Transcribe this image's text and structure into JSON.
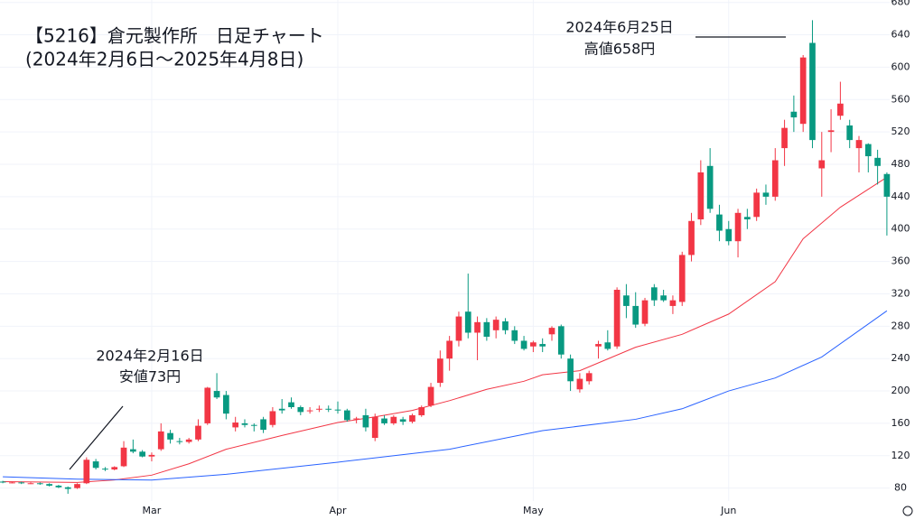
{
  "chart_data": {
    "type": "candlestick",
    "title": "【5216】倉元製作所　日足チャート",
    "subtitle": "(2024年2月6日～2025年4月8日)",
    "annotations": [
      {
        "lines": [
          "2024年6月25日",
          "高値658円"
        ]
      },
      {
        "lines": [
          "2024年2月16日",
          "安値73円"
        ]
      }
    ],
    "up_color": "#f23645",
    "down_color": "#089981",
    "ylim": [
      64,
      683
    ],
    "yticks": [
      80,
      120,
      160,
      200,
      240,
      280,
      320,
      360,
      400,
      440,
      480,
      520,
      560,
      600,
      640,
      680
    ],
    "xlim": [
      -0.3,
      95.3
    ],
    "xticks": [
      {
        "value": 16,
        "label": "Mar"
      },
      {
        "value": 36,
        "label": "Apr"
      },
      {
        "value": 57,
        "label": "May"
      },
      {
        "value": 78,
        "label": "Jun"
      }
    ],
    "grid": true,
    "candles": [
      {
        "o": 88,
        "h": 89,
        "l": 86,
        "c": 87
      },
      {
        "o": 87,
        "h": 88,
        "l": 86,
        "c": 87
      },
      {
        "o": 87,
        "h": 88,
        "l": 85,
        "c": 86
      },
      {
        "o": 86,
        "h": 87,
        "l": 85,
        "c": 86
      },
      {
        "o": 86,
        "h": 87,
        "l": 84,
        "c": 85
      },
      {
        "o": 85,
        "h": 86,
        "l": 82,
        "c": 83
      },
      {
        "o": 83,
        "h": 84,
        "l": 80,
        "c": 81
      },
      {
        "o": 81,
        "h": 82,
        "l": 73,
        "c": 79
      },
      {
        "o": 80,
        "h": 86,
        "l": 79,
        "c": 85
      },
      {
        "o": 86,
        "h": 118,
        "l": 85,
        "c": 115
      },
      {
        "o": 113,
        "h": 116,
        "l": 103,
        "c": 105
      },
      {
        "o": 104,
        "h": 106,
        "l": 101,
        "c": 103
      },
      {
        "o": 103,
        "h": 107,
        "l": 102,
        "c": 106
      },
      {
        "o": 107,
        "h": 138,
        "l": 106,
        "c": 130
      },
      {
        "o": 128,
        "h": 140,
        "l": 123,
        "c": 125
      },
      {
        "o": 125,
        "h": 127,
        "l": 118,
        "c": 119
      },
      {
        "o": 119,
        "h": 124,
        "l": 113,
        "c": 121
      },
      {
        "o": 128,
        "h": 160,
        "l": 126,
        "c": 150
      },
      {
        "o": 148,
        "h": 152,
        "l": 135,
        "c": 140
      },
      {
        "o": 138,
        "h": 142,
        "l": 134,
        "c": 137
      },
      {
        "o": 137,
        "h": 142,
        "l": 135,
        "c": 140
      },
      {
        "o": 140,
        "h": 165,
        "l": 138,
        "c": 157
      },
      {
        "o": 160,
        "h": 205,
        "l": 158,
        "c": 204
      },
      {
        "o": 200,
        "h": 222,
        "l": 190,
        "c": 192
      },
      {
        "o": 195,
        "h": 200,
        "l": 165,
        "c": 172
      },
      {
        "o": 155,
        "h": 168,
        "l": 150,
        "c": 161
      },
      {
        "o": 160,
        "h": 165,
        "l": 155,
        "c": 158
      },
      {
        "o": 158,
        "h": 160,
        "l": 150,
        "c": 157
      },
      {
        "o": 165,
        "h": 168,
        "l": 148,
        "c": 152
      },
      {
        "o": 158,
        "h": 180,
        "l": 155,
        "c": 175
      },
      {
        "o": 178,
        "h": 190,
        "l": 172,
        "c": 176
      },
      {
        "o": 186,
        "h": 192,
        "l": 178,
        "c": 180
      },
      {
        "o": 180,
        "h": 182,
        "l": 170,
        "c": 174
      },
      {
        "o": 175,
        "h": 180,
        "l": 172,
        "c": 176
      },
      {
        "o": 177,
        "h": 182,
        "l": 174,
        "c": 178
      },
      {
        "o": 178,
        "h": 182,
        "l": 174,
        "c": 177
      },
      {
        "o": 177,
        "h": 187,
        "l": 172,
        "c": 176
      },
      {
        "o": 176,
        "h": 178,
        "l": 162,
        "c": 164
      },
      {
        "o": 165,
        "h": 168,
        "l": 160,
        "c": 166
      },
      {
        "o": 170,
        "h": 178,
        "l": 150,
        "c": 155
      },
      {
        "o": 142,
        "h": 172,
        "l": 138,
        "c": 168
      },
      {
        "o": 166,
        "h": 170,
        "l": 158,
        "c": 160
      },
      {
        "o": 160,
        "h": 170,
        "l": 158,
        "c": 168
      },
      {
        "o": 165,
        "h": 168,
        "l": 158,
        "c": 162
      },
      {
        "o": 162,
        "h": 172,
        "l": 160,
        "c": 170
      },
      {
        "o": 170,
        "h": 182,
        "l": 168,
        "c": 180
      },
      {
        "o": 182,
        "h": 210,
        "l": 180,
        "c": 205
      },
      {
        "o": 210,
        "h": 250,
        "l": 205,
        "c": 240
      },
      {
        "o": 240,
        "h": 268,
        "l": 225,
        "c": 262
      },
      {
        "o": 262,
        "h": 298,
        "l": 255,
        "c": 292
      },
      {
        "o": 298,
        "h": 345,
        "l": 265,
        "c": 272
      },
      {
        "o": 272,
        "h": 292,
        "l": 238,
        "c": 285
      },
      {
        "o": 285,
        "h": 290,
        "l": 262,
        "c": 267
      },
      {
        "o": 275,
        "h": 292,
        "l": 265,
        "c": 288
      },
      {
        "o": 286,
        "h": 290,
        "l": 270,
        "c": 275
      },
      {
        "o": 275,
        "h": 280,
        "l": 258,
        "c": 262
      },
      {
        "o": 262,
        "h": 268,
        "l": 250,
        "c": 252
      },
      {
        "o": 255,
        "h": 262,
        "l": 248,
        "c": 260
      },
      {
        "o": 258,
        "h": 265,
        "l": 248,
        "c": 255
      },
      {
        "o": 270,
        "h": 280,
        "l": 262,
        "c": 278
      },
      {
        "o": 280,
        "h": 282,
        "l": 240,
        "c": 245
      },
      {
        "o": 240,
        "h": 245,
        "l": 200,
        "c": 212
      },
      {
        "o": 202,
        "h": 222,
        "l": 198,
        "c": 215
      },
      {
        "o": 212,
        "h": 225,
        "l": 208,
        "c": 222
      },
      {
        "o": 255,
        "h": 262,
        "l": 240,
        "c": 258
      },
      {
        "o": 260,
        "h": 275,
        "l": 250,
        "c": 252
      },
      {
        "o": 255,
        "h": 328,
        "l": 252,
        "c": 325
      },
      {
        "o": 318,
        "h": 332,
        "l": 290,
        "c": 305
      },
      {
        "o": 305,
        "h": 322,
        "l": 278,
        "c": 282
      },
      {
        "o": 283,
        "h": 315,
        "l": 280,
        "c": 312
      },
      {
        "o": 328,
        "h": 332,
        "l": 305,
        "c": 312
      },
      {
        "o": 318,
        "h": 325,
        "l": 310,
        "c": 312
      },
      {
        "o": 305,
        "h": 318,
        "l": 295,
        "c": 312
      },
      {
        "o": 310,
        "h": 372,
        "l": 305,
        "c": 368
      },
      {
        "o": 368,
        "h": 420,
        "l": 360,
        "c": 410
      },
      {
        "o": 412,
        "h": 485,
        "l": 405,
        "c": 470
      },
      {
        "o": 478,
        "h": 500,
        "l": 420,
        "c": 425
      },
      {
        "o": 418,
        "h": 430,
        "l": 385,
        "c": 398
      },
      {
        "o": 400,
        "h": 410,
        "l": 380,
        "c": 385
      },
      {
        "o": 385,
        "h": 425,
        "l": 365,
        "c": 420
      },
      {
        "o": 415,
        "h": 425,
        "l": 400,
        "c": 412
      },
      {
        "o": 415,
        "h": 450,
        "l": 410,
        "c": 445
      },
      {
        "o": 445,
        "h": 455,
        "l": 430,
        "c": 440
      },
      {
        "o": 440,
        "h": 500,
        "l": 435,
        "c": 485
      },
      {
        "o": 500,
        "h": 535,
        "l": 478,
        "c": 525
      },
      {
        "o": 545,
        "h": 565,
        "l": 520,
        "c": 538
      },
      {
        "o": 530,
        "h": 615,
        "l": 520,
        "c": 612
      },
      {
        "o": 630,
        "h": 658,
        "l": 500,
        "c": 510
      },
      {
        "o": 475,
        "h": 520,
        "l": 440,
        "c": 485
      },
      {
        "o": 520,
        "h": 548,
        "l": 495,
        "c": 522
      },
      {
        "o": 540,
        "h": 582,
        "l": 535,
        "c": 555
      },
      {
        "o": 528,
        "h": 535,
        "l": 500,
        "c": 510
      },
      {
        "o": 500,
        "h": 515,
        "l": 470,
        "c": 510
      },
      {
        "o": 505,
        "h": 506,
        "l": 470,
        "c": 490
      },
      {
        "o": 488,
        "h": 498,
        "l": 455,
        "c": 478
      },
      {
        "o": 468,
        "h": 470,
        "l": 392,
        "c": 440
      }
    ],
    "lines": [
      {
        "color": "#f23645",
        "x": [
          0,
          8,
          12,
          16,
          20,
          24,
          30,
          36,
          40,
          44,
          48,
          52,
          56,
          58,
          62,
          68,
          73,
          78,
          83,
          86,
          90,
          95
        ],
        "values": [
          88,
          87,
          90,
          96,
          110,
          128,
          145,
          161,
          168,
          176,
          188,
          202,
          212,
          220,
          225,
          254,
          270,
          295,
          335,
          388,
          427,
          464
        ]
      },
      {
        "color": "#2962ff",
        "x": [
          0,
          8,
          16,
          24,
          36,
          48,
          58,
          68,
          73,
          78,
          83,
          88,
          95
        ],
        "values": [
          94,
          91,
          90,
          97,
          112,
          128,
          151,
          165,
          178,
          200,
          216,
          242,
          299
        ]
      }
    ]
  }
}
